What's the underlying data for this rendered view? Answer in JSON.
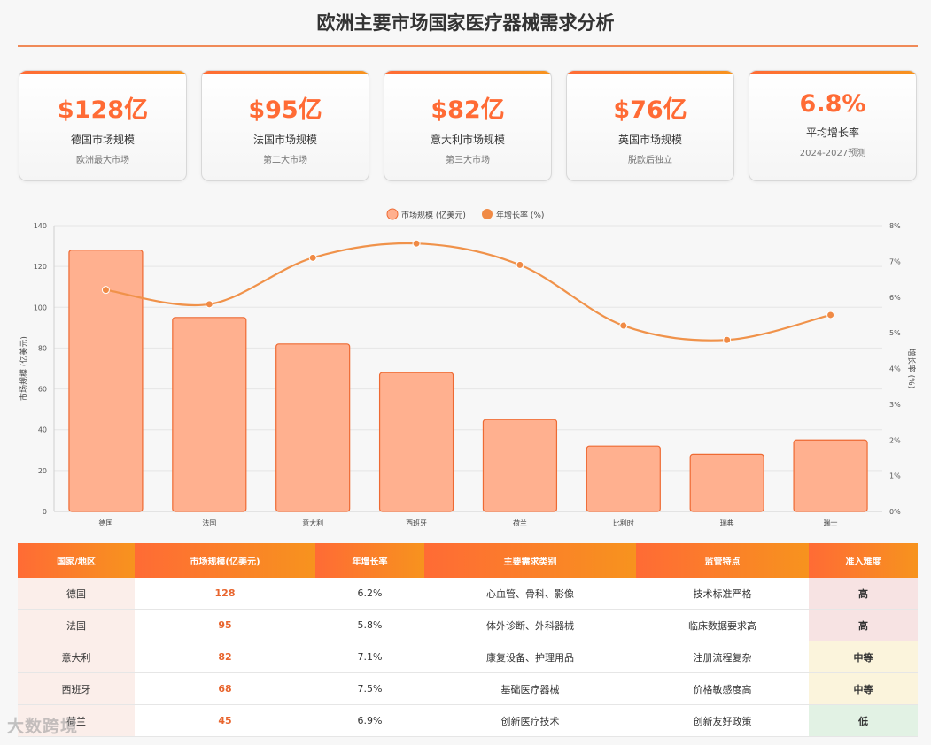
{
  "page": {
    "title": "欧洲主要市场国家医疗器械需求分析"
  },
  "cards": [
    {
      "value": "$128亿",
      "label": "德国市场规模",
      "sub": "欧洲最大市场"
    },
    {
      "value": "$95亿",
      "label": "法国市场规模",
      "sub": "第二大市场"
    },
    {
      "value": "$82亿",
      "label": "意大利市场规模",
      "sub": "第三大市场"
    },
    {
      "value": "$76亿",
      "label": "英国市场规模",
      "sub": "脱欧后独立"
    },
    {
      "value": "6.8%",
      "label": "平均增长率",
      "sub": "2024-2027预测"
    }
  ],
  "chart_data": {
    "type": "bar",
    "categories": [
      "德国",
      "法国",
      "意大利",
      "西班牙",
      "荷兰",
      "比利时",
      "瑞典",
      "瑞士"
    ],
    "series": [
      {
        "name": "市场规模 (亿美元)",
        "type": "bar",
        "axis": "left",
        "values": [
          128,
          95,
          82,
          68,
          45,
          32,
          28,
          35
        ]
      },
      {
        "name": "年增长率 (%)",
        "type": "line",
        "axis": "right",
        "values": [
          6.2,
          5.8,
          7.1,
          7.5,
          6.9,
          5.2,
          4.8,
          5.5
        ]
      }
    ],
    "ylabel": "市场规模 (亿美元)",
    "ylabel_right": "增长率 (%)",
    "ylim": [
      0,
      140
    ],
    "yticks": [
      0,
      20,
      40,
      60,
      80,
      100,
      120,
      140
    ],
    "ylim_right": [
      0,
      8
    ],
    "yticks_right": [
      "0%",
      "1%",
      "2%",
      "3%",
      "4%",
      "5%",
      "6%",
      "7%",
      "8%"
    ],
    "grid": true,
    "legend_position": "top-center",
    "colors": {
      "bar_fill": "#ffb08f",
      "bar_stroke": "#ee6a33",
      "line": "#f0924a",
      "point": "#f08a45"
    }
  },
  "table": {
    "headers": [
      "国家/地区",
      "市场规模(亿美元)",
      "年增长率",
      "主要需求类别",
      "监管特点",
      "准入难度"
    ],
    "rows": [
      {
        "country": "德国",
        "size": "128",
        "growth": "6.2%",
        "category": "心血管、骨科、影像",
        "regulation": "技术标准严格",
        "difficulty": "高",
        "level": "high"
      },
      {
        "country": "法国",
        "size": "95",
        "growth": "5.8%",
        "category": "体外诊断、外科器械",
        "regulation": "临床数据要求高",
        "difficulty": "高",
        "level": "high"
      },
      {
        "country": "意大利",
        "size": "82",
        "growth": "7.1%",
        "category": "康复设备、护理用品",
        "regulation": "注册流程复杂",
        "difficulty": "中等",
        "level": "mid"
      },
      {
        "country": "西班牙",
        "size": "68",
        "growth": "7.5%",
        "category": "基础医疗器械",
        "regulation": "价格敏感度高",
        "difficulty": "中等",
        "level": "mid"
      },
      {
        "country": "荷兰",
        "size": "45",
        "growth": "6.9%",
        "category": "创新医疗技术",
        "regulation": "创新友好政策",
        "difficulty": "低",
        "level": "low"
      }
    ]
  },
  "watermark": "大数跨境"
}
